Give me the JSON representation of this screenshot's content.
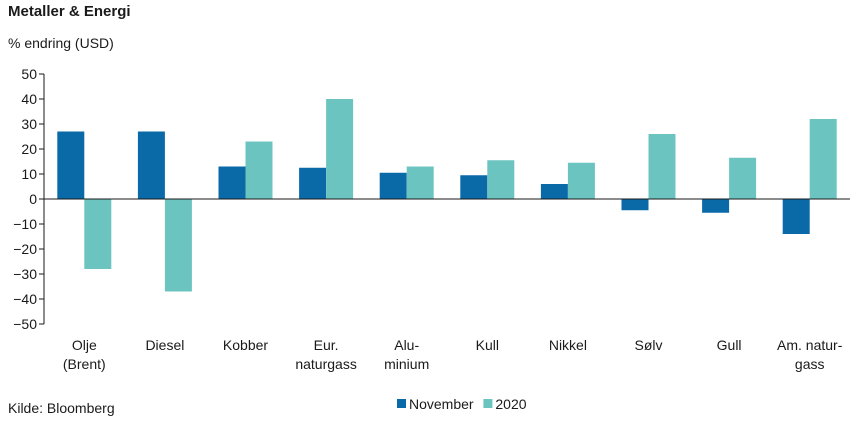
{
  "chart_data": {
    "type": "bar",
    "title": "Metaller & Energi",
    "subtitle": "% endring (USD)",
    "source": "Kilde: Bloomberg",
    "categories": [
      [
        "Olje",
        "(Brent)"
      ],
      [
        "Diesel"
      ],
      [
        "Kobber"
      ],
      [
        "Eur.",
        "naturgass"
      ],
      [
        "Alu-",
        "minium"
      ],
      [
        "Kull"
      ],
      [
        "Nikkel"
      ],
      [
        "Sølv"
      ],
      [
        "Gull"
      ],
      [
        "Am. natur-",
        "gass"
      ]
    ],
    "series": [
      {
        "name": "November",
        "color": "#0a6aa8",
        "values": [
          27,
          27,
          13,
          12.5,
          10.5,
          9.5,
          6,
          -4.5,
          -5.5,
          -14
        ]
      },
      {
        "name": "2020",
        "color": "#6cc4c0",
        "values": [
          -28,
          -37,
          23,
          40,
          13,
          15.5,
          14.5,
          26,
          16.5,
          32
        ]
      }
    ],
    "ylim": [
      -50,
      50
    ],
    "yticks": [
      50,
      40,
      30,
      20,
      10,
      0,
      -10,
      -20,
      -30,
      -40,
      -50
    ],
    "grid": false,
    "legend_position": "bottom-center"
  }
}
